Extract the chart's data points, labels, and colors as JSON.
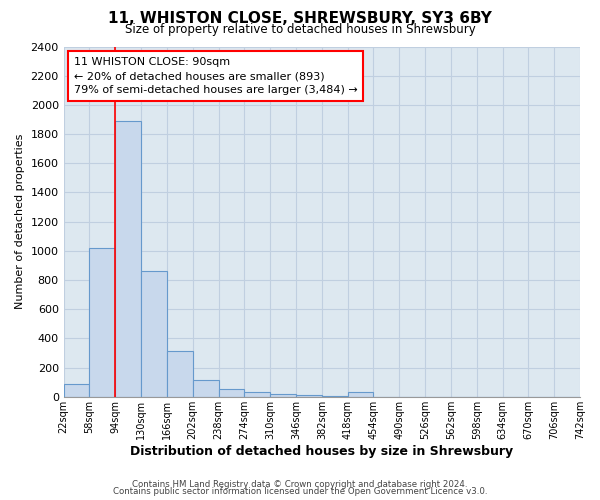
{
  "title": "11, WHISTON CLOSE, SHREWSBURY, SY3 6BY",
  "subtitle": "Size of property relative to detached houses in Shrewsbury",
  "xlabel": "Distribution of detached houses by size in Shrewsbury",
  "ylabel": "Number of detached properties",
  "bar_color": "#c8d8ec",
  "bar_edge_color": "#6699cc",
  "bg_color": "#dde8f0",
  "grid_color": "#c0cfe0",
  "bin_edges": [
    22,
    58,
    94,
    130,
    166,
    202,
    238,
    274,
    310,
    346,
    382,
    418,
    454,
    490,
    526,
    562,
    598,
    634,
    670,
    706,
    742
  ],
  "bin_labels": [
    "22sqm",
    "58sqm",
    "94sqm",
    "130sqm",
    "166sqm",
    "202sqm",
    "238sqm",
    "274sqm",
    "310sqm",
    "346sqm",
    "382sqm",
    "418sqm",
    "454sqm",
    "490sqm",
    "526sqm",
    "562sqm",
    "598sqm",
    "634sqm",
    "670sqm",
    "706sqm",
    "742sqm"
  ],
  "bar_heights": [
    90,
    1020,
    1890,
    860,
    315,
    115,
    55,
    35,
    20,
    10,
    5,
    30,
    0,
    0,
    0,
    0,
    0,
    0,
    0,
    0
  ],
  "vline_x": 94,
  "annotation_text_line1": "11 WHISTON CLOSE: 90sqm",
  "annotation_text_line2": "← 20% of detached houses are smaller (893)",
  "annotation_text_line3": "79% of semi-detached houses are larger (3,484) →",
  "ylim": [
    0,
    2400
  ],
  "yticks": [
    0,
    200,
    400,
    600,
    800,
    1000,
    1200,
    1400,
    1600,
    1800,
    2000,
    2200,
    2400
  ],
  "footer_line1": "Contains HM Land Registry data © Crown copyright and database right 2024.",
  "footer_line2": "Contains public sector information licensed under the Open Government Licence v3.0."
}
